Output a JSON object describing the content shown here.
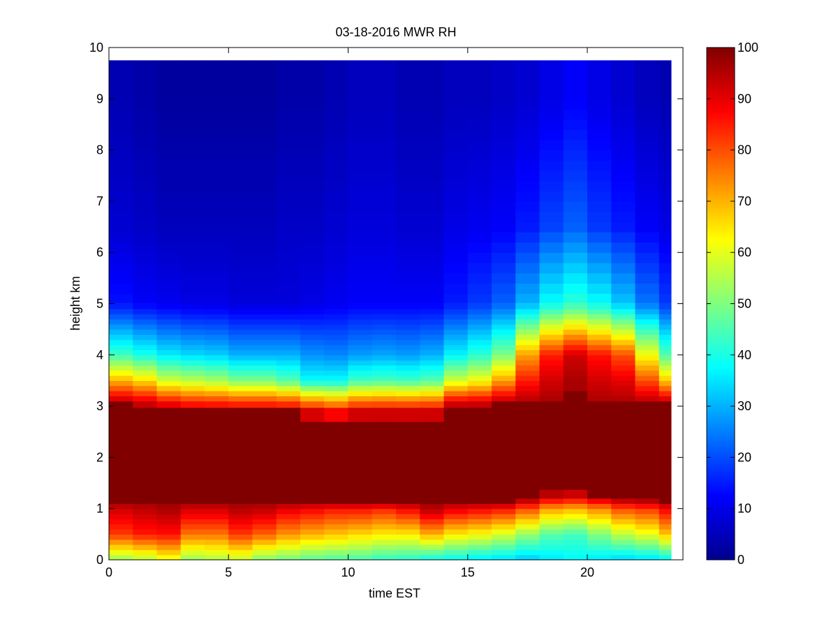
{
  "chart_data": {
    "type": "heatmap",
    "title": "03-18-2016 MWR RH",
    "xlabel": "time EST",
    "ylabel": "height km",
    "xlim": [
      0,
      24
    ],
    "ylim": [
      0,
      10
    ],
    "x_ticks": [
      0,
      5,
      10,
      15,
      20
    ],
    "y_ticks": [
      0,
      1,
      2,
      3,
      4,
      5,
      6,
      7,
      8,
      9,
      10
    ],
    "x_tick_labels": [
      "0",
      "5",
      "10",
      "15",
      "20"
    ],
    "y_tick_labels": [
      "0",
      "1",
      "2",
      "3",
      "4",
      "5",
      "6",
      "7",
      "8",
      "9",
      "10"
    ],
    "colorbar": {
      "range": [
        0,
        100
      ],
      "ticks": [
        0,
        10,
        20,
        30,
        40,
        50,
        60,
        70,
        80,
        90,
        100
      ],
      "tick_labels": [
        "0",
        "10",
        "20",
        "30",
        "40",
        "50",
        "60",
        "70",
        "80",
        "90",
        "100"
      ],
      "colormap": "jet"
    },
    "x": [
      0,
      1,
      2,
      3,
      4,
      5,
      6,
      7,
      8,
      9,
      10,
      11,
      12,
      13,
      14,
      15,
      16,
      17,
      18,
      19,
      20,
      21,
      22,
      23
    ],
    "y": [
      0.05,
      0.15,
      0.25,
      0.35,
      0.45,
      0.55,
      0.65,
      0.75,
      0.85,
      0.95,
      1.05,
      1.15,
      1.25,
      1.5,
      2.0,
      2.5,
      2.9,
      3.05,
      3.15,
      3.25,
      3.35,
      3.45,
      3.55,
      3.65,
      3.75,
      3.85,
      3.95,
      4.05,
      4.15,
      4.25,
      4.35,
      4.45,
      4.55,
      4.65,
      4.75,
      4.85,
      4.95,
      5.1,
      5.3,
      5.5,
      5.7,
      5.9,
      6.1,
      6.3,
      6.5,
      6.7,
      6.9,
      7.1,
      7.3,
      7.5,
      7.7,
      7.9,
      8.1,
      8.3,
      8.5,
      8.7,
      8.9,
      9.1,
      9.3,
      9.5,
      9.7
    ],
    "rh_profiles": {
      "time_hours": [
        0,
        1,
        2,
        3,
        4,
        5,
        6,
        7,
        8,
        9,
        10,
        11,
        12,
        13,
        14,
        15,
        16,
        17,
        18,
        19,
        20,
        21,
        22,
        23
      ],
      "surface_rh": [
        52,
        55,
        60,
        52,
        54,
        56,
        50,
        48,
        46,
        45,
        44,
        42,
        41,
        38,
        37,
        35,
        34,
        32,
        35,
        37,
        35,
        33,
        34,
        36
      ],
      "rh_at_0_5km": [
        82,
        85,
        86,
        76,
        76,
        82,
        78,
        73,
        70,
        68,
        66,
        64,
        64,
        70,
        64,
        62,
        58,
        52,
        46,
        44,
        50,
        56,
        60,
        68
      ],
      "rh_at_1km": [
        92,
        94,
        96,
        92,
        92,
        95,
        94,
        90,
        88,
        86,
        86,
        84,
        88,
        95,
        90,
        88,
        86,
        80,
        72,
        70,
        74,
        80,
        82,
        88
      ],
      "moist_layer_bottom_km": [
        1.12,
        1.12,
        1.12,
        1.12,
        1.12,
        1.12,
        1.12,
        1.12,
        1.12,
        1.12,
        1.12,
        1.12,
        1.12,
        1.12,
        1.12,
        1.12,
        1.12,
        1.2,
        1.28,
        1.3,
        1.25,
        1.2,
        1.18,
        1.14
      ],
      "moist_layer_top_km": [
        3.05,
        3.0,
        2.95,
        2.9,
        2.9,
        2.9,
        2.9,
        2.9,
        2.85,
        2.8,
        2.85,
        2.85,
        2.85,
        2.85,
        3.0,
        3.0,
        3.05,
        3.05,
        3.1,
        3.25,
        3.05,
        3.05,
        3.05,
        3.05
      ],
      "rh_at_3_5km": [
        70,
        66,
        58,
        56,
        54,
        50,
        50,
        46,
        38,
        38,
        44,
        45,
        44,
        46,
        58,
        62,
        72,
        85,
        92,
        96,
        92,
        90,
        80,
        68
      ],
      "rh_at_4km": [
        44,
        40,
        36,
        34,
        33,
        30,
        30,
        30,
        27,
        26,
        28,
        29,
        28,
        30,
        37,
        42,
        50,
        72,
        85,
        92,
        86,
        80,
        62,
        46
      ],
      "rh_at_5km": [
        14,
        12,
        11,
        10,
        10,
        9,
        9,
        9,
        10,
        11,
        12,
        12,
        12,
        12,
        15,
        18,
        22,
        30,
        38,
        42,
        38,
        32,
        24,
        18
      ],
      "rh_at_6_5km": [
        8,
        7,
        6,
        6,
        6,
        6,
        6,
        7,
        7,
        8,
        9,
        9,
        8,
        8,
        10,
        11,
        12,
        15,
        19,
        22,
        18,
        15,
        12,
        10
      ],
      "rh_at_9km": [
        5,
        4,
        3,
        3,
        3,
        3,
        3,
        4,
        4,
        5,
        6,
        6,
        5,
        5,
        6,
        6,
        7,
        8,
        10,
        12,
        10,
        8,
        6,
        5
      ]
    }
  }
}
